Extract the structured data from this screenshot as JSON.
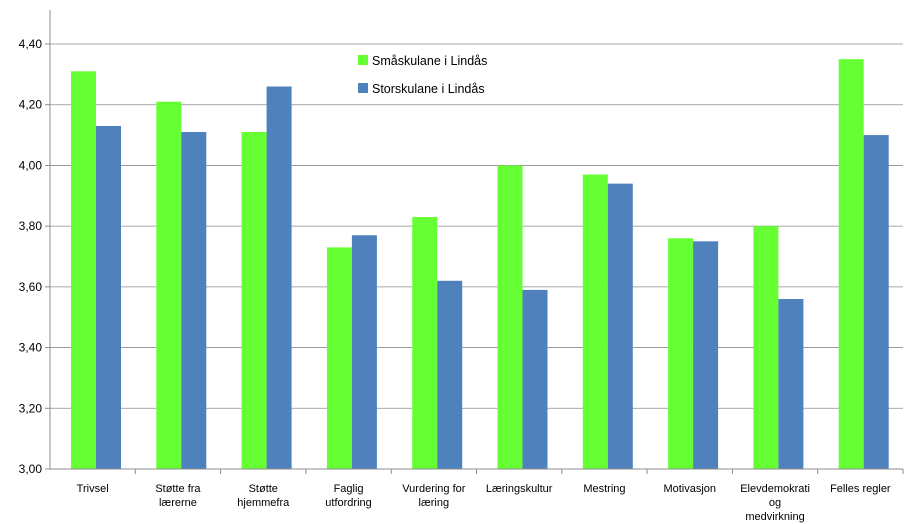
{
  "chart_data": {
    "type": "bar",
    "categories": [
      [
        "Trivsel"
      ],
      [
        "Støtte fra",
        "lærerne"
      ],
      [
        "Støtte",
        "hjemmefra"
      ],
      [
        "Faglig",
        "utfordring"
      ],
      [
        "Vurdering for",
        "læring"
      ],
      [
        "Læringskultur"
      ],
      [
        "Mestring"
      ],
      [
        "Motivasjon"
      ],
      [
        "Elevdemokrati",
        "og",
        "medvirkning"
      ],
      [
        "Felles regler"
      ]
    ],
    "series": [
      {
        "name": "Småskulane i Lindås",
        "color": "#66ff33",
        "values": [
          4.31,
          4.21,
          4.11,
          3.73,
          3.83,
          4.0,
          3.97,
          3.76,
          3.8,
          4.35
        ]
      },
      {
        "name": "Storskulane i Lindås",
        "color": "#4f81bd",
        "values": [
          4.13,
          4.11,
          4.26,
          3.77,
          3.62,
          3.59,
          3.94,
          3.75,
          3.56,
          4.1
        ]
      }
    ],
    "ylim": [
      3.0,
      4.4
    ],
    "yticks": [
      "3,00",
      "3,20",
      "3,40",
      "3,60",
      "3,80",
      "4,00",
      "4,20",
      "4,40"
    ],
    "ytick_values": [
      3.0,
      3.2,
      3.4,
      3.6,
      3.8,
      4.0,
      4.2,
      4.4
    ],
    "grid": true,
    "legend_position": "top-center"
  }
}
